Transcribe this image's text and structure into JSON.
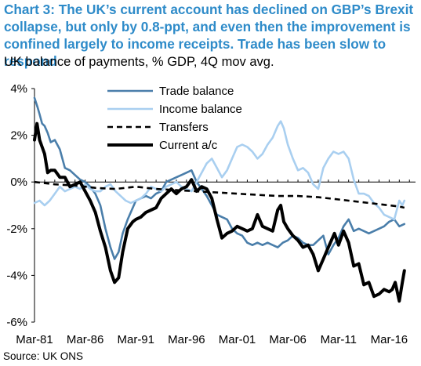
{
  "header": {
    "title": "Chart 3: The UK’s current account has declined on GBP’s Brexit collapse, but only by 0.8-ppt, and even then the improvement is confined largely to income receipts. Trade has been slow to respond",
    "subtitle": "UK balance of payments, % GDP, 4Q mov avg."
  },
  "footer": {
    "source": "Source: UK ONS"
  },
  "chart_data": {
    "type": "line",
    "title": "",
    "ylabel": "",
    "xlabel": "",
    "ylim": [
      -6,
      4
    ],
    "xlim": [
      1981.0,
      2018.6
    ],
    "y_tick_labels": [
      "4%",
      "2%",
      "0%",
      "-2%",
      "-4%",
      "-6%"
    ],
    "y_ticks": [
      4,
      2,
      0,
      -2,
      -4,
      -6
    ],
    "x_tick_labels": [
      "Mar-81",
      "Mar-86",
      "Mar-91",
      "Mar-96",
      "Mar-01",
      "Mar-06",
      "Mar-11",
      "Mar-16"
    ],
    "x_ticks": [
      1981.0,
      1986.0,
      1991.0,
      1996.0,
      2001.0,
      2006.0,
      2011.0,
      2016.0
    ],
    "grid": false,
    "legend_position": "top-center",
    "series": [
      {
        "name": "Trade balance",
        "color": "#4a7eaa",
        "style": "solid",
        "x": [
          1981.0,
          1981.3,
          1981.5,
          1981.75,
          1982.0,
          1982.3,
          1982.6,
          1983.0,
          1983.5,
          1984.0,
          1984.5,
          1985.0,
          1985.5,
          1986.0,
          1986.5,
          1987.0,
          1987.5,
          1988.0,
          1988.5,
          1988.9,
          1989.3,
          1989.7,
          1990.2,
          1990.7,
          1991.0,
          1991.5,
          1992.0,
          1992.5,
          1993.0,
          1993.5,
          1994.0,
          1994.5,
          1995.0,
          1995.5,
          1996.0,
          1996.5,
          1997.0,
          1997.5,
          1998.0,
          1998.5,
          1999.0,
          1999.5,
          2000.0,
          2000.5,
          2001.0,
          2001.5,
          2002.0,
          2002.5,
          2003.0,
          2003.5,
          2004.0,
          2004.5,
          2005.0,
          2005.5,
          2006.0,
          2006.5,
          2007.0,
          2007.5,
          2008.0,
          2008.5,
          2009.0,
          2009.5,
          2010.0,
          2010.5,
          2011.0,
          2011.5,
          2012.0,
          2012.5,
          2013.0,
          2013.5,
          2014.0,
          2014.5,
          2015.0,
          2015.5,
          2016.0,
          2016.5,
          2017.0,
          2017.5
        ],
        "y": [
          3.6,
          3.2,
          2.9,
          2.5,
          2.4,
          2.1,
          1.7,
          1.8,
          1.4,
          0.6,
          0.5,
          0.3,
          0.1,
          0.0,
          -0.2,
          -0.5,
          -1.0,
          -2.0,
          -2.8,
          -3.3,
          -3.0,
          -2.2,
          -1.6,
          -1.1,
          -0.8,
          -0.7,
          -0.6,
          -0.7,
          -0.5,
          -0.4,
          0.0,
          0.1,
          0.2,
          0.3,
          0.4,
          0.5,
          0.0,
          -0.3,
          -0.6,
          -1.0,
          -1.4,
          -1.5,
          -1.6,
          -2.0,
          -2.2,
          -2.3,
          -2.6,
          -2.7,
          -2.6,
          -2.7,
          -2.6,
          -2.7,
          -2.8,
          -2.6,
          -2.5,
          -2.3,
          -2.4,
          -2.6,
          -2.7,
          -2.7,
          -2.5,
          -2.3,
          -3.1,
          -2.7,
          -2.4,
          -1.9,
          -1.6,
          -2.1,
          -2.0,
          -2.1,
          -2.2,
          -2.1,
          -2.0,
          -1.9,
          -1.7,
          -1.6,
          -1.9,
          -1.8
        ]
      },
      {
        "name": "Income balance",
        "color": "#a9cff0",
        "style": "solid",
        "x": [
          1981.0,
          1981.5,
          1982.0,
          1982.5,
          1983.0,
          1983.5,
          1984.0,
          1984.5,
          1985.0,
          1985.5,
          1986.0,
          1986.5,
          1987.0,
          1987.5,
          1988.0,
          1988.5,
          1989.0,
          1989.5,
          1990.0,
          1990.5,
          1991.0,
          1991.5,
          1992.0,
          1992.5,
          1993.0,
          1993.5,
          1994.0,
          1994.5,
          1995.0,
          1995.5,
          1996.0,
          1996.5,
          1997.0,
          1997.5,
          1998.0,
          1998.5,
          1999.0,
          1999.5,
          2000.0,
          2000.5,
          2001.0,
          2001.5,
          2002.0,
          2002.5,
          2003.0,
          2003.5,
          2004.0,
          2004.5,
          2005.0,
          2005.3,
          2005.6,
          2006.0,
          2006.5,
          2007.0,
          2007.5,
          2008.0,
          2008.5,
          2009.0,
          2009.5,
          2010.0,
          2010.5,
          2011.0,
          2011.5,
          2012.0,
          2012.5,
          2013.0,
          2013.5,
          2014.0,
          2014.5,
          2015.0,
          2015.5,
          2016.0,
          2016.5,
          2017.0,
          2017.3,
          2017.5
        ],
        "y": [
          -0.9,
          -0.8,
          -1.0,
          -0.8,
          -0.5,
          -0.2,
          -0.4,
          -0.3,
          -0.2,
          -0.3,
          -0.1,
          -0.3,
          -0.4,
          -0.4,
          -0.2,
          -0.1,
          -0.4,
          -0.6,
          -0.8,
          -0.9,
          -0.8,
          -0.7,
          -0.5,
          -0.2,
          -0.3,
          -0.4,
          -0.2,
          -0.1,
          0.0,
          -0.2,
          -0.3,
          -0.4,
          0.0,
          0.4,
          0.8,
          1.0,
          0.6,
          0.2,
          0.5,
          1.0,
          1.5,
          1.6,
          1.5,
          1.3,
          1.0,
          1.2,
          1.6,
          1.9,
          2.4,
          2.6,
          2.3,
          1.6,
          1.0,
          0.5,
          0.6,
          0.4,
          -0.1,
          -0.3,
          0.6,
          1.0,
          1.3,
          1.2,
          1.3,
          1.0,
          0.1,
          -0.5,
          -0.5,
          -0.6,
          -0.9,
          -1.1,
          -1.4,
          -1.5,
          -1.6,
          -0.8,
          -1.0,
          -0.8
        ]
      },
      {
        "name": "Transfers",
        "color": "#000000",
        "style": "dashed",
        "x": [
          1981.0,
          1983.0,
          1985.0,
          1987.0,
          1989.0,
          1991.0,
          1993.0,
          1995.0,
          1997.0,
          1999.0,
          2001.0,
          2003.0,
          2005.0,
          2007.0,
          2009.0,
          2011.0,
          2013.0,
          2015.0,
          2017.0,
          2017.5
        ],
        "y": [
          0.0,
          -0.1,
          -0.15,
          -0.25,
          -0.3,
          -0.2,
          -0.3,
          -0.35,
          -0.4,
          -0.45,
          -0.5,
          -0.55,
          -0.6,
          -0.6,
          -0.65,
          -0.75,
          -0.85,
          -0.95,
          -1.05,
          -1.1
        ]
      },
      {
        "name": "Current a/c",
        "color": "#000000",
        "style": "solid",
        "x": [
          1981.0,
          1981.25,
          1981.5,
          1981.75,
          1982.0,
          1982.3,
          1982.6,
          1983.0,
          1983.5,
          1984.0,
          1984.5,
          1985.0,
          1985.5,
          1986.0,
          1986.5,
          1987.0,
          1987.5,
          1988.0,
          1988.5,
          1988.9,
          1989.3,
          1989.7,
          1990.2,
          1990.7,
          1991.0,
          1991.5,
          1992.0,
          1992.5,
          1993.0,
          1993.5,
          1994.0,
          1994.5,
          1995.0,
          1995.5,
          1996.0,
          1996.5,
          1997.0,
          1997.5,
          1998.0,
          1998.5,
          1999.0,
          1999.5,
          2000.0,
          2000.5,
          2001.0,
          2001.5,
          2002.0,
          2002.5,
          2003.0,
          2003.5,
          2004.0,
          2004.5,
          2005.0,
          2005.3,
          2005.6,
          2006.0,
          2006.5,
          2007.0,
          2007.5,
          2008.0,
          2008.5,
          2009.0,
          2009.5,
          2010.0,
          2010.3,
          2010.6,
          2011.0,
          2011.5,
          2012.0,
          2012.5,
          2013.0,
          2013.5,
          2014.0,
          2014.5,
          2015.0,
          2015.5,
          2016.0,
          2016.3,
          2016.6,
          2017.0,
          2017.3,
          2017.5
        ],
        "y": [
          1.8,
          2.5,
          1.8,
          1.5,
          1.2,
          0.4,
          0.5,
          0.5,
          0.2,
          0.2,
          -0.2,
          -0.1,
          0.0,
          -0.4,
          -0.8,
          -1.3,
          -2.1,
          -2.8,
          -3.8,
          -4.3,
          -4.1,
          -3.0,
          -2.0,
          -1.7,
          -1.6,
          -1.5,
          -1.3,
          -1.2,
          -1.1,
          -0.7,
          -0.5,
          -0.3,
          -0.5,
          -0.3,
          -0.2,
          0.1,
          -0.4,
          -0.2,
          -0.3,
          -0.7,
          -1.6,
          -2.4,
          -2.2,
          -2.1,
          -1.9,
          -2.0,
          -2.1,
          -2.0,
          -1.4,
          -1.9,
          -2.0,
          -2.1,
          -1.2,
          -1.0,
          -1.7,
          -2.0,
          -2.3,
          -2.5,
          -2.8,
          -2.7,
          -3.1,
          -3.8,
          -3.3,
          -2.8,
          -2.5,
          -2.2,
          -2.7,
          -2.1,
          -2.6,
          -3.6,
          -3.5,
          -4.4,
          -4.3,
          -4.9,
          -4.8,
          -4.6,
          -4.7,
          -4.6,
          -4.3,
          -5.1,
          -4.3,
          -3.8
        ]
      }
    ]
  }
}
